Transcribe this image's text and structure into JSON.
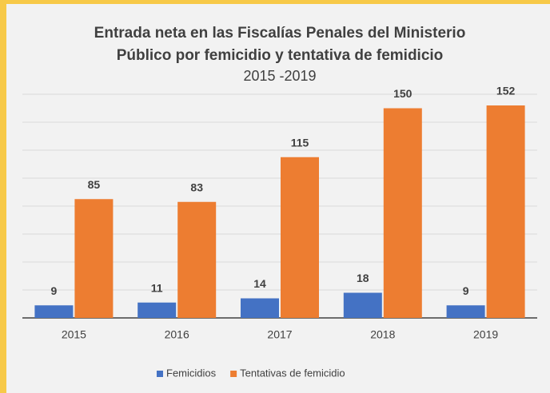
{
  "chart_data": {
    "type": "bar",
    "title": [
      "Entrada neta en las Fiscalías Penales del Ministerio",
      "Público por femicidio y tentativa de femidicio"
    ],
    "subtitle": "2015 -2019",
    "categories": [
      "2015",
      "2016",
      "2017",
      "2018",
      "2019"
    ],
    "series": [
      {
        "name": "Femicidios",
        "color": "#4472c4",
        "values": [
          9,
          11,
          14,
          18,
          9
        ]
      },
      {
        "name": "Tentativas de femicidio",
        "color": "#ed7d31",
        "values": [
          85,
          83,
          115,
          150,
          152
        ]
      }
    ],
    "ylim": [
      0,
      160
    ],
    "yticks": [
      0,
      20,
      40,
      60,
      80,
      100,
      120,
      140,
      160
    ],
    "grid": true,
    "legend": "bottom"
  }
}
